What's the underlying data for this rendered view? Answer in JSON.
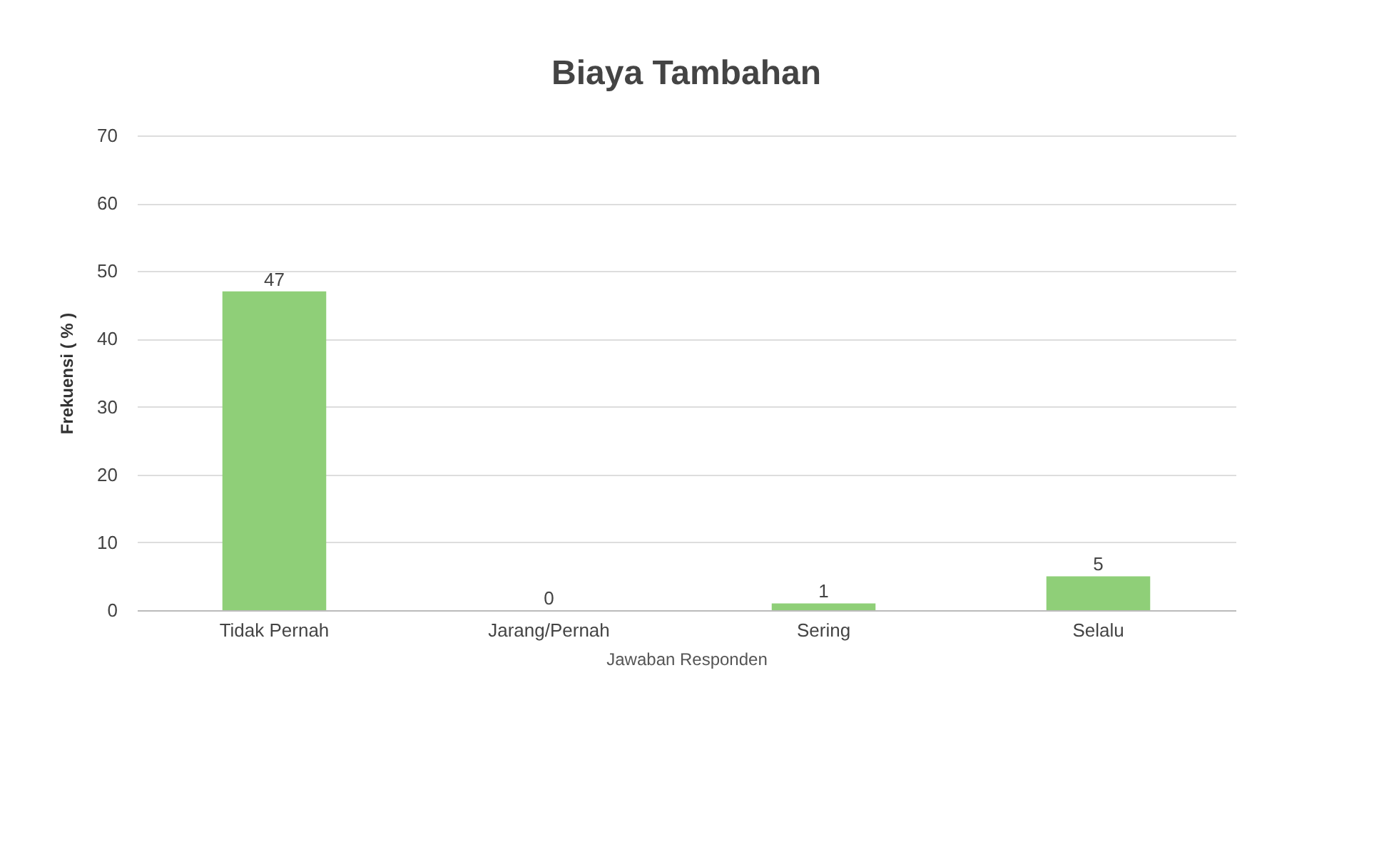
{
  "chart_data": {
    "type": "bar",
    "title": "Biaya Tambahan",
    "xlabel": "Jawaban Responden",
    "ylabel": "Frekuensi ( % )",
    "categories": [
      "Tidak Pernah",
      "Jarang/Pernah",
      "Sering",
      "Selalu"
    ],
    "values": [
      47,
      0,
      1,
      5
    ],
    "color": "#8fcf78",
    "ylim": [
      0,
      70
    ],
    "yticks": [
      0,
      10,
      20,
      30,
      40,
      50,
      60,
      70
    ],
    "grid": "y",
    "data_labels": true
  }
}
